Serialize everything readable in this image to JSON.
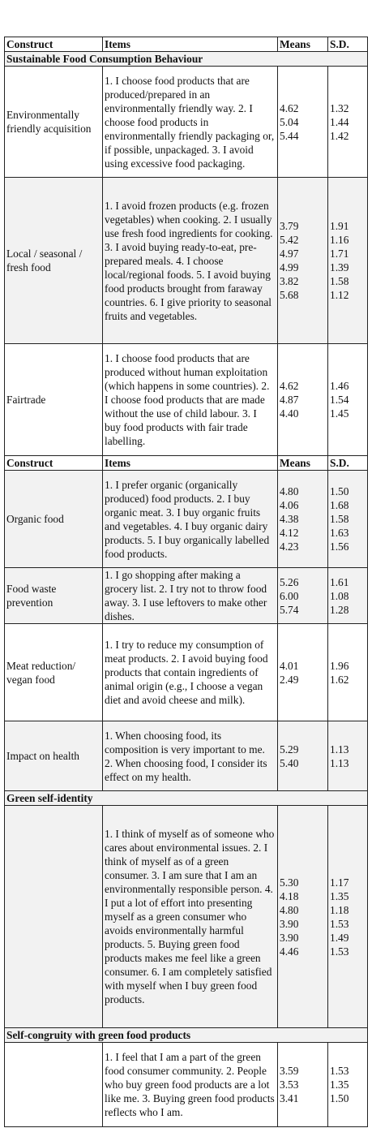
{
  "table": {
    "rows": [
      [
        "Construct",
        "Items",
        "Means",
        "S.D."
      ],
      [
        "Sustainable Food Consumption Behaviour"
      ],
      [
        "Environmentally friendly acquisition",
        "1. I choose food products that are produced/prepared in an environmentally friendly way. 2. I choose food products in environmentally friendly packaging or, if possible, unpackaged. 3. I avoid using excessive food packaging.",
        [
          "4.62",
          "5.04",
          "5.44"
        ],
        [
          "1.32",
          "1.44",
          "1.42"
        ]
      ],
      [
        "Local / seasonal / fresh food",
        "1. I avoid frozen products (e.g. frozen vegetables) when cooking. 2. I usually use fresh food ingredients for cooking. 3. I avoid buying ready-to-eat, pre-prepared meals. 4. I choose local/regional foods. 5. I avoid buying food products brought from faraway countries. 6. I give priority to seasonal fruits and vegetables.",
        [
          "3.79",
          "5.42",
          "4.97",
          "4.99",
          "3.82",
          "5.68"
        ],
        [
          "1.91",
          "1.16",
          "1.71",
          "1.39",
          "1.58",
          "1.12"
        ]
      ],
      [
        "Fairtrade",
        "1. I choose food products that are produced without human exploitation (which happens in some countries). 2. I choose food products that are made without the use of child labour. 3. I buy food products with fair trade labelling.",
        [
          "4.62",
          "4.87",
          "4.40"
        ],
        [
          "1.46",
          "1.54",
          "1.45"
        ]
      ],
      [
        "Construct",
        "Items",
        "Means",
        "S.D."
      ],
      [
        "Organic food",
        "1. I prefer organic (organically produced) food products. 2. I buy organic meat. 3. I buy organic fruits and vegetables. 4. I buy organic dairy products. 5. I buy organically labelled food products.",
        [
          "4.80",
          "4.06",
          "4.38",
          "4.12",
          "4.23"
        ],
        [
          "1.50",
          "1.68",
          "1.58",
          "1.63",
          "1.56"
        ]
      ],
      [
        "Food waste prevention",
        "1. I go shopping after making a grocery list. 2. I try not to throw food away. 3. I use leftovers to make other dishes.",
        [
          "5.26",
          "6.00",
          "5.74"
        ],
        [
          "1.61",
          "1.08",
          "1.28"
        ]
      ],
      [
        "Meat reduction/ vegan food",
        "1. I try to reduce my consumption of meat products. 2. I avoid buying food products that contain ingredients of animal origin (e.g., I choose a vegan diet and avoid cheese and milk).",
        [
          "4.01",
          "2.49"
        ],
        [
          "1.96",
          "1.62"
        ]
      ],
      [
        "Impact on health",
        "1. When choosing food, its composition is very important to me. 2. When choosing food, I consider its effect on my health.",
        [
          "5.29",
          "5.40"
        ],
        [
          "1.13",
          "1.13"
        ]
      ],
      [
        "Green self-identity"
      ],
      [
        null,
        "1. I think of myself as of someone who cares about environmental issues. 2. I think of myself as of a green consumer. 3. I am sure that I am an environmentally responsible person. 4. I put a lot of effort into presenting myself as a green consumer who avoids environmentally harmful products. 5. Buying green food products makes me feel like a green consumer. 6. I am completely satisfied with myself when I buy green food products.",
        [
          "5.30",
          "4.18",
          "4.80",
          "3.90",
          "3.90",
          "4.46"
        ],
        [
          "1.17",
          "1.35",
          "1.18",
          "1.53",
          "1.49",
          "1.53"
        ]
      ],
      [
        "Self-congruity with green food products"
      ],
      [
        null,
        "1. I feel that I am a part of the green food consumer community. 2. People who buy green food products are a lot like me. 3. Buying green food products reflects who I am.",
        [
          "3.59",
          "3.53",
          "3.41"
        ],
        [
          "1.53",
          "1.35",
          "1.50"
        ]
      ]
    ]
  }
}
